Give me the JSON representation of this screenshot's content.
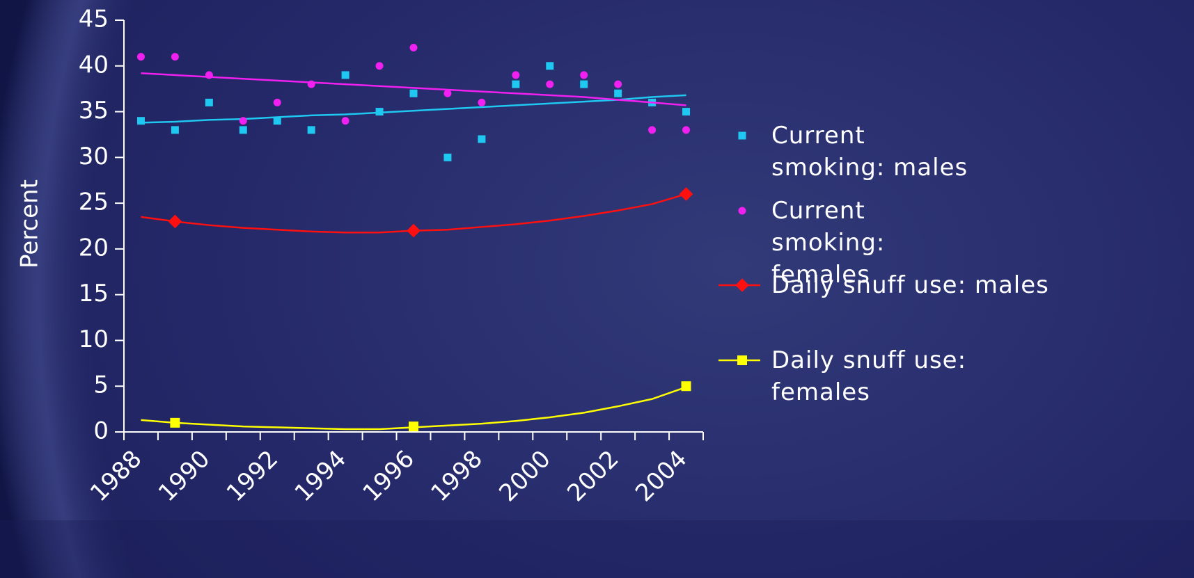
{
  "chart_data": {
    "type": "combo",
    "y_label": "Percent",
    "categories": [
      "1988",
      null,
      "1990",
      null,
      "1992",
      null,
      "1994",
      null,
      "1996",
      null,
      "1998",
      null,
      "2000",
      null,
      "2002",
      null,
      "2004"
    ],
    "ylim": [
      0,
      45
    ],
    "yticks": [
      0,
      5,
      10,
      15,
      20,
      25,
      30,
      35,
      40,
      45
    ],
    "series": [
      {
        "name": "Current smoking: males",
        "type": "scatter",
        "marker": "square",
        "color": "#1ec8f0",
        "values": [
          34,
          33,
          36,
          33,
          34,
          33,
          39,
          35,
          37,
          30,
          32,
          38,
          40,
          38,
          37,
          36,
          35
        ],
        "trend": [
          33.8,
          33.9,
          34.1,
          34.2,
          34.4,
          34.6,
          34.7,
          34.9,
          35.1,
          35.3,
          35.5,
          35.7,
          35.9,
          36.1,
          36.3,
          36.6,
          36.8
        ]
      },
      {
        "name": "Current smoking: females",
        "type": "scatter",
        "marker": "circle",
        "color": "#f020f0",
        "values": [
          41,
          41,
          39,
          34,
          36,
          38,
          34,
          40,
          42,
          37,
          36,
          39,
          38,
          39,
          38,
          33,
          33
        ],
        "trend": [
          39.2,
          39.0,
          38.8,
          38.6,
          38.4,
          38.2,
          38.0,
          37.8,
          37.6,
          37.4,
          37.2,
          37.0,
          36.8,
          36.6,
          36.3,
          36.0,
          35.7
        ]
      },
      {
        "name": "Daily snuff use: males",
        "type": "line",
        "marker": "diamond",
        "color": "#ff1010",
        "values": [
          null,
          23,
          null,
          null,
          null,
          null,
          null,
          null,
          22,
          null,
          null,
          null,
          null,
          null,
          null,
          null,
          26
        ],
        "trend": [
          23.5,
          23.0,
          22.6,
          22.3,
          22.1,
          21.9,
          21.8,
          21.8,
          22.0,
          22.1,
          22.4,
          22.7,
          23.1,
          23.6,
          24.2,
          24.9,
          26.0
        ]
      },
      {
        "name": "Daily snuff use: females",
        "type": "line",
        "marker": "square",
        "color": "#ffff00",
        "values": [
          null,
          1.0,
          null,
          null,
          null,
          null,
          null,
          null,
          0.6,
          null,
          null,
          null,
          null,
          null,
          null,
          null,
          5.0
        ],
        "trend": [
          1.3,
          1.0,
          0.8,
          0.6,
          0.5,
          0.4,
          0.3,
          0.3,
          0.5,
          0.7,
          0.9,
          1.2,
          1.6,
          2.1,
          2.8,
          3.6,
          4.9
        ]
      }
    ]
  }
}
